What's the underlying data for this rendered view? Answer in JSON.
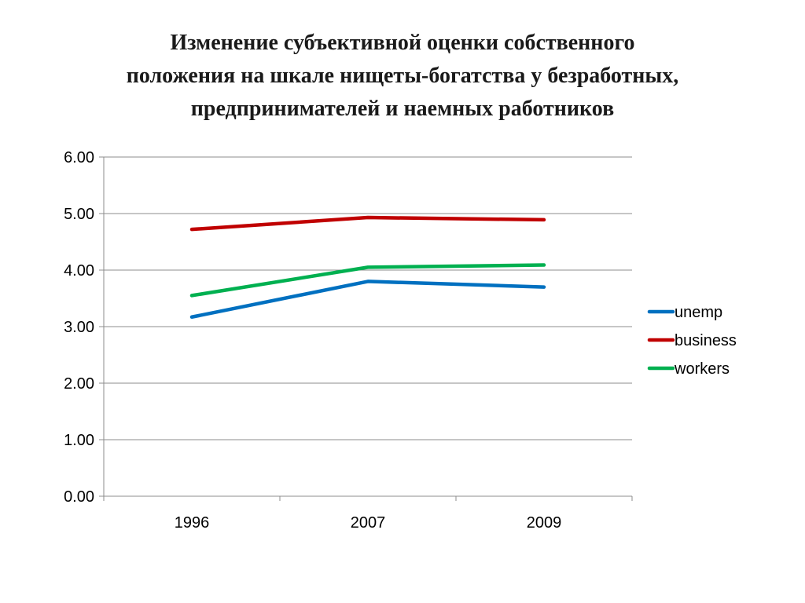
{
  "title_lines": [
    "Изменение субъективной оценки собственного",
    "положения на шкале нищеты-богатства у безработных,",
    "предпринимателей и наемных работников"
  ],
  "chart_data": {
    "type": "line",
    "title": "Изменение субъективной оценки собственного положения на шкале нищеты-богатства у безработных, предпринимателей и наемных работников",
    "categories": [
      "1996",
      "2007",
      "2009"
    ],
    "series": [
      {
        "name": "unemp",
        "values": [
          3.17,
          3.8,
          3.7
        ],
        "color": "#0070C0"
      },
      {
        "name": "business",
        "values": [
          4.72,
          4.93,
          4.89
        ],
        "color": "#C00000"
      },
      {
        "name": "workers",
        "values": [
          3.55,
          4.05,
          4.09
        ],
        "color": "#00B050"
      }
    ],
    "ylim": [
      0,
      6
    ],
    "yticks": [
      "0.00",
      "1.00",
      "2.00",
      "3.00",
      "4.00",
      "5.00",
      "6.00"
    ],
    "xlabel": "",
    "ylabel": "",
    "grid": true,
    "legend": "right"
  }
}
